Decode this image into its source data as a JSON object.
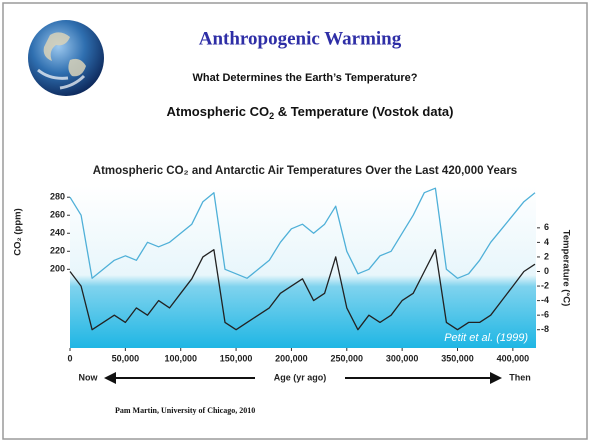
{
  "slide": {
    "title": "Anthropogenic Warming",
    "subtitle": "What Determines the Earth’s Temperature?",
    "heading": {
      "before": "Atmospheric CO",
      "sub": "2",
      "after": "  & Temperature (Vostok data)"
    },
    "footer": "Pam Martin, University of Chicago, 2010"
  },
  "chart_data": {
    "type": "line",
    "title": "Atmospheric CO₂ and Antarctic Air Temperatures Over the Last 420,000 Years",
    "y_label": "CO₂ (ppm)",
    "y2_label": "Temperature (°C)",
    "x_label": "Age (yr ago)",
    "x_start_label": "Now",
    "x_end_label": "Then",
    "annotation": "Petit et al. (1999)",
    "x": [
      0,
      10000,
      20000,
      30000,
      40000,
      50000,
      60000,
      70000,
      80000,
      90000,
      100000,
      110000,
      120000,
      130000,
      140000,
      150000,
      160000,
      170000,
      180000,
      190000,
      200000,
      210000,
      220000,
      230000,
      240000,
      250000,
      260000,
      270000,
      280000,
      290000,
      300000,
      310000,
      320000,
      330000,
      340000,
      350000,
      360000,
      370000,
      380000,
      390000,
      400000,
      410000,
      420000
    ],
    "series": [
      {
        "color": "#4fb0d8",
        "axis": "y",
        "values": [
          280,
          260,
          190,
          200,
          210,
          215,
          210,
          230,
          225,
          230,
          240,
          250,
          275,
          285,
          200,
          195,
          190,
          200,
          210,
          230,
          245,
          250,
          240,
          250,
          270,
          220,
          195,
          200,
          215,
          220,
          240,
          260,
          285,
          290,
          200,
          190,
          195,
          210,
          230,
          245,
          260,
          275,
          285
        ]
      },
      {
        "color": "#222222",
        "axis": "y2",
        "values": [
          0,
          -2,
          -8,
          -7,
          -6,
          -7,
          -5,
          -6,
          -4,
          -5,
          -3,
          -1,
          2,
          3,
          -7,
          -8,
          -7,
          -6,
          -5,
          -3,
          -2,
          -1,
          -4,
          -3,
          2,
          -5,
          -8,
          -6,
          -7,
          -6,
          -4,
          -3,
          0,
          3,
          -7,
          -8,
          -7,
          -7,
          -6,
          -4,
          -2,
          0,
          1
        ]
      }
    ],
    "xlim": [
      0,
      420000
    ],
    "xticks": [
      0,
      {
        "value": 50000,
        "label": "50,000"
      },
      {
        "value": 100000,
        "label": "100,000"
      },
      {
        "value": 150000,
        "label": "150,000"
      },
      {
        "value": 200000,
        "label": "200,000"
      },
      {
        "value": 250000,
        "label": "250,000"
      },
      {
        "value": 300000,
        "label": "300,000"
      },
      {
        "value": 350000,
        "label": "350,000"
      },
      {
        "value": 400000,
        "label": "400,000"
      }
    ],
    "ylim": [
      116,
      288
    ],
    "yticks": [
      200,
      220,
      240,
      260,
      280
    ],
    "y2lim": [
      -10.1,
      11.2
    ],
    "y2ticks": [
      -8,
      -6,
      -4,
      -2,
      0,
      2,
      4,
      6
    ]
  }
}
